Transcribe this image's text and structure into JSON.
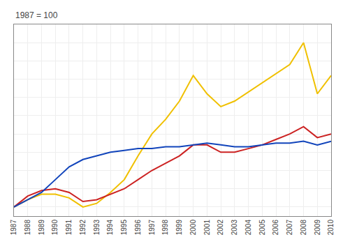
{
  "chart_data": {
    "type": "line",
    "ylabel": "1987 = 100",
    "x": [
      1987,
      1988,
      1989,
      1990,
      1991,
      1992,
      1993,
      1994,
      1995,
      1996,
      1997,
      1998,
      1999,
      2000,
      2001,
      2002,
      2003,
      2004,
      2005,
      2006,
      2007,
      2008,
      2009,
      2010
    ],
    "series": [
      {
        "color": "#f0c000",
        "values": [
          100,
          104,
          107,
          107,
          105,
          100,
          102,
          108,
          115,
          128,
          140,
          148,
          158,
          172,
          162,
          155,
          158,
          163,
          168,
          173,
          178,
          190,
          162,
          172
        ]
      },
      {
        "color": "#cc2222",
        "values": [
          100,
          106,
          109,
          110,
          108,
          103,
          104,
          107,
          110,
          115,
          120,
          124,
          128,
          134,
          134,
          130,
          130,
          132,
          134,
          137,
          140,
          144,
          138,
          140
        ]
      },
      {
        "color": "#1144bb",
        "values": [
          100,
          104,
          108,
          115,
          122,
          126,
          128,
          130,
          131,
          132,
          132,
          133,
          133,
          134,
          135,
          134,
          133,
          133,
          134,
          135,
          135,
          136,
          134,
          136
        ]
      }
    ],
    "xlim": [
      1987,
      2010
    ],
    "xticks": [
      1987,
      1988,
      1989,
      1990,
      1991,
      1992,
      1993,
      1994,
      1995,
      1996,
      1997,
      1998,
      1999,
      2000,
      2001,
      2002,
      2003,
      2004,
      2005,
      2006,
      2007,
      2008,
      2009,
      2010
    ],
    "ylim": [
      95,
      200
    ],
    "yticks": [
      100,
      110,
      120,
      130,
      140,
      150,
      160,
      170,
      180,
      190,
      200
    ],
    "grid": true,
    "tick_labels": "x"
  }
}
